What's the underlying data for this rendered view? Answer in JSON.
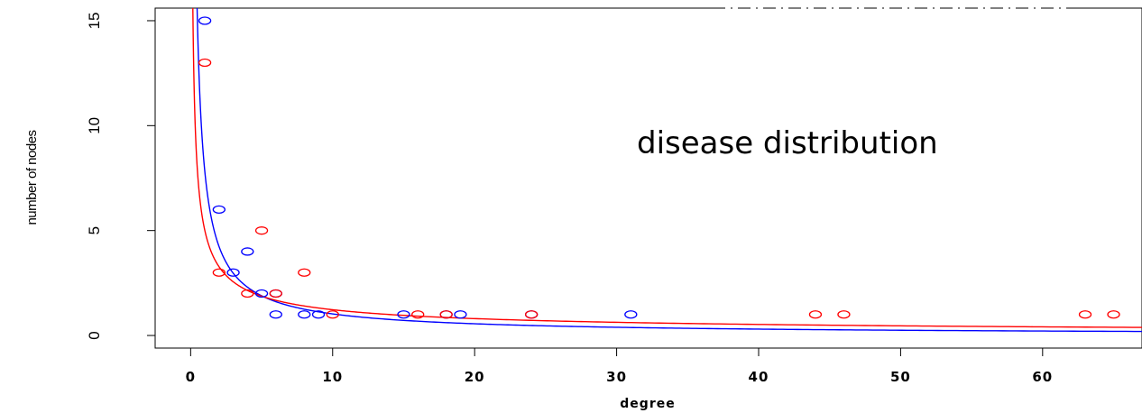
{
  "chart_data": {
    "type": "scatter",
    "xlabel": "degree",
    "ylabel": "number of nodes",
    "xlim": [
      -2.5,
      67
    ],
    "ylim": [
      -0.6,
      15.6
    ],
    "x_ticks": [
      0,
      10,
      20,
      30,
      40,
      50,
      60
    ],
    "y_ticks": [
      0,
      5,
      10,
      15
    ],
    "annotation": "disease distribution",
    "series": [
      {
        "color": "#0000ff",
        "points": [
          [
            1,
            15
          ],
          [
            2,
            6
          ],
          [
            3,
            3
          ],
          [
            4,
            4
          ],
          [
            5,
            2
          ],
          [
            6,
            2
          ],
          [
            6,
            1
          ],
          [
            8,
            1
          ],
          [
            9,
            1
          ],
          [
            15,
            1
          ],
          [
            18,
            1
          ],
          [
            19,
            1
          ],
          [
            24,
            1
          ],
          [
            31,
            1
          ]
        ],
        "fit": {
          "a": 7.8,
          "b": 0.88
        }
      },
      {
        "color": "#ff0000",
        "points": [
          [
            1,
            13
          ],
          [
            2,
            3
          ],
          [
            4,
            2
          ],
          [
            5,
            5
          ],
          [
            6,
            2
          ],
          [
            8,
            3
          ],
          [
            10,
            1
          ],
          [
            16,
            1
          ],
          [
            18,
            1
          ],
          [
            24,
            1
          ],
          [
            44,
            1
          ],
          [
            46,
            1
          ],
          [
            63,
            1
          ],
          [
            65,
            1
          ]
        ],
        "fit": {
          "a": 5.0,
          "b": 0.61
        }
      }
    ]
  }
}
